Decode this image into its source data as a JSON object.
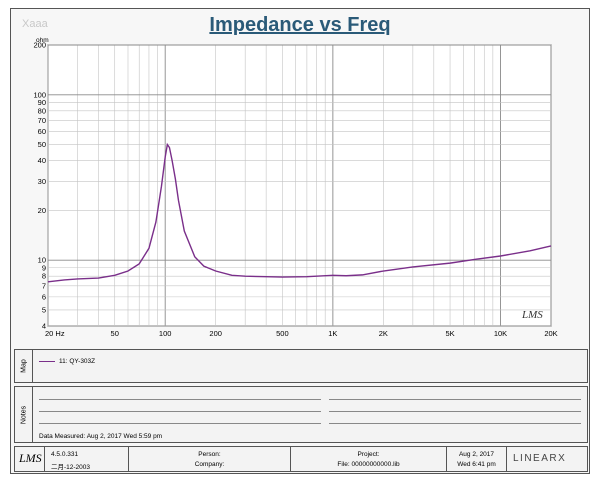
{
  "title": "Impedance vs Freq",
  "watermark_top_left": "Xaaa",
  "chart_data": {
    "type": "line",
    "xscale": "log",
    "yscale": "log",
    "xlim": [
      20,
      20000
    ],
    "ylim": [
      4,
      200
    ],
    "y_unit": "ohm",
    "x_ticks": [
      "20 Hz",
      "50",
      "100",
      "200",
      "500",
      "1K",
      "2K",
      "5K",
      "10K",
      "20K"
    ],
    "x_tick_values": [
      20,
      50,
      100,
      200,
      500,
      1000,
      2000,
      5000,
      10000,
      20000
    ],
    "y_ticks": [
      "200",
      "100",
      "90",
      "80",
      "70",
      "60",
      "50",
      "40",
      "30",
      "20",
      "10",
      "9",
      "8",
      "7",
      "6",
      "5",
      "4"
    ],
    "y_tick_values": [
      200,
      100,
      90,
      80,
      70,
      60,
      50,
      40,
      30,
      20,
      10,
      9,
      8,
      7,
      6,
      5,
      4
    ],
    "grid": true,
    "watermark": "LMS",
    "series": [
      {
        "name": "11: QY-303Z",
        "color": "#7a2f8a",
        "x": [
          20,
          25,
          30,
          40,
          50,
          60,
          70,
          80,
          88,
          95,
          100,
          103,
          106,
          110,
          115,
          120,
          130,
          150,
          170,
          200,
          250,
          300,
          400,
          500,
          700,
          1000,
          1200,
          1500,
          2000,
          3000,
          5000,
          7000,
          10000,
          15000,
          20000
        ],
        "y": [
          7.4,
          7.6,
          7.7,
          7.8,
          8.1,
          8.6,
          9.5,
          11.8,
          17,
          28,
          42,
          50,
          48,
          40,
          31,
          23,
          15,
          10.5,
          9.2,
          8.6,
          8.1,
          8.0,
          7.95,
          7.9,
          7.95,
          8.1,
          8.05,
          8.15,
          8.6,
          9.1,
          9.6,
          10.1,
          10.6,
          11.4,
          12.2
        ]
      }
    ]
  },
  "panels": {
    "map_label": "Map",
    "legend_entry": "11: QY-303Z",
    "notes_label": "Notes",
    "date_measured": "Data Measured: Aug  2, 2017   Wed  5:59 pm"
  },
  "footer": {
    "logo": "LMS",
    "version": "4.5.0.331",
    "version_date": "二月-12-2003",
    "person_label": "Person:",
    "company_label": "Company:",
    "project_label": "Project:",
    "file_label": "File: 00000000000.lib",
    "date": "Aug  2, 2017",
    "time": "Wed  6:41 pm",
    "brand": "LINEARX"
  }
}
